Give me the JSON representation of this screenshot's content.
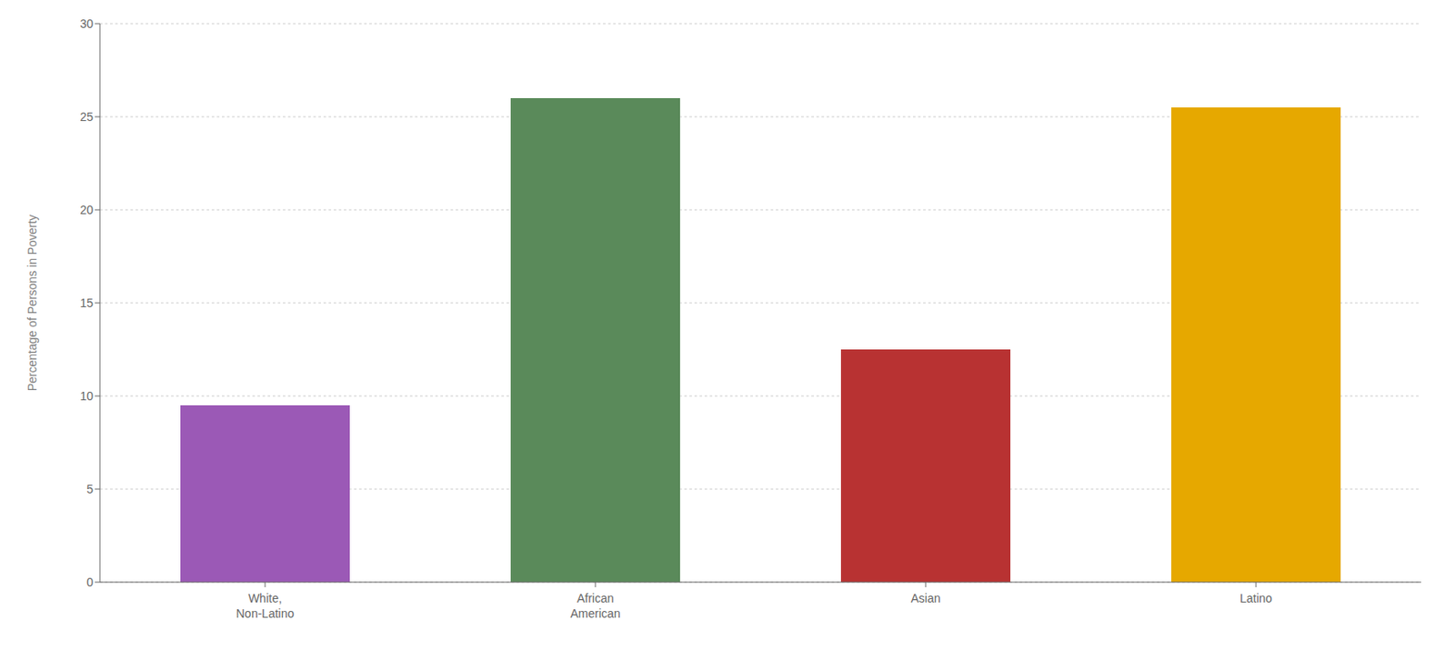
{
  "chart_data": {
    "type": "bar",
    "categories": [
      "White,\nNon-Latino",
      "African\nAmerican",
      "Asian",
      "Latino"
    ],
    "values": [
      9.5,
      26.0,
      12.5,
      25.5
    ],
    "colors": [
      "#9B59B6",
      "#5A8A5A",
      "#B83232",
      "#E6A800"
    ],
    "ylabel": "Percentage of Persons in Poverty",
    "ylim": [
      0,
      30
    ],
    "yticks": [
      0,
      5,
      10,
      15,
      20,
      25,
      30
    ],
    "grid": true
  }
}
